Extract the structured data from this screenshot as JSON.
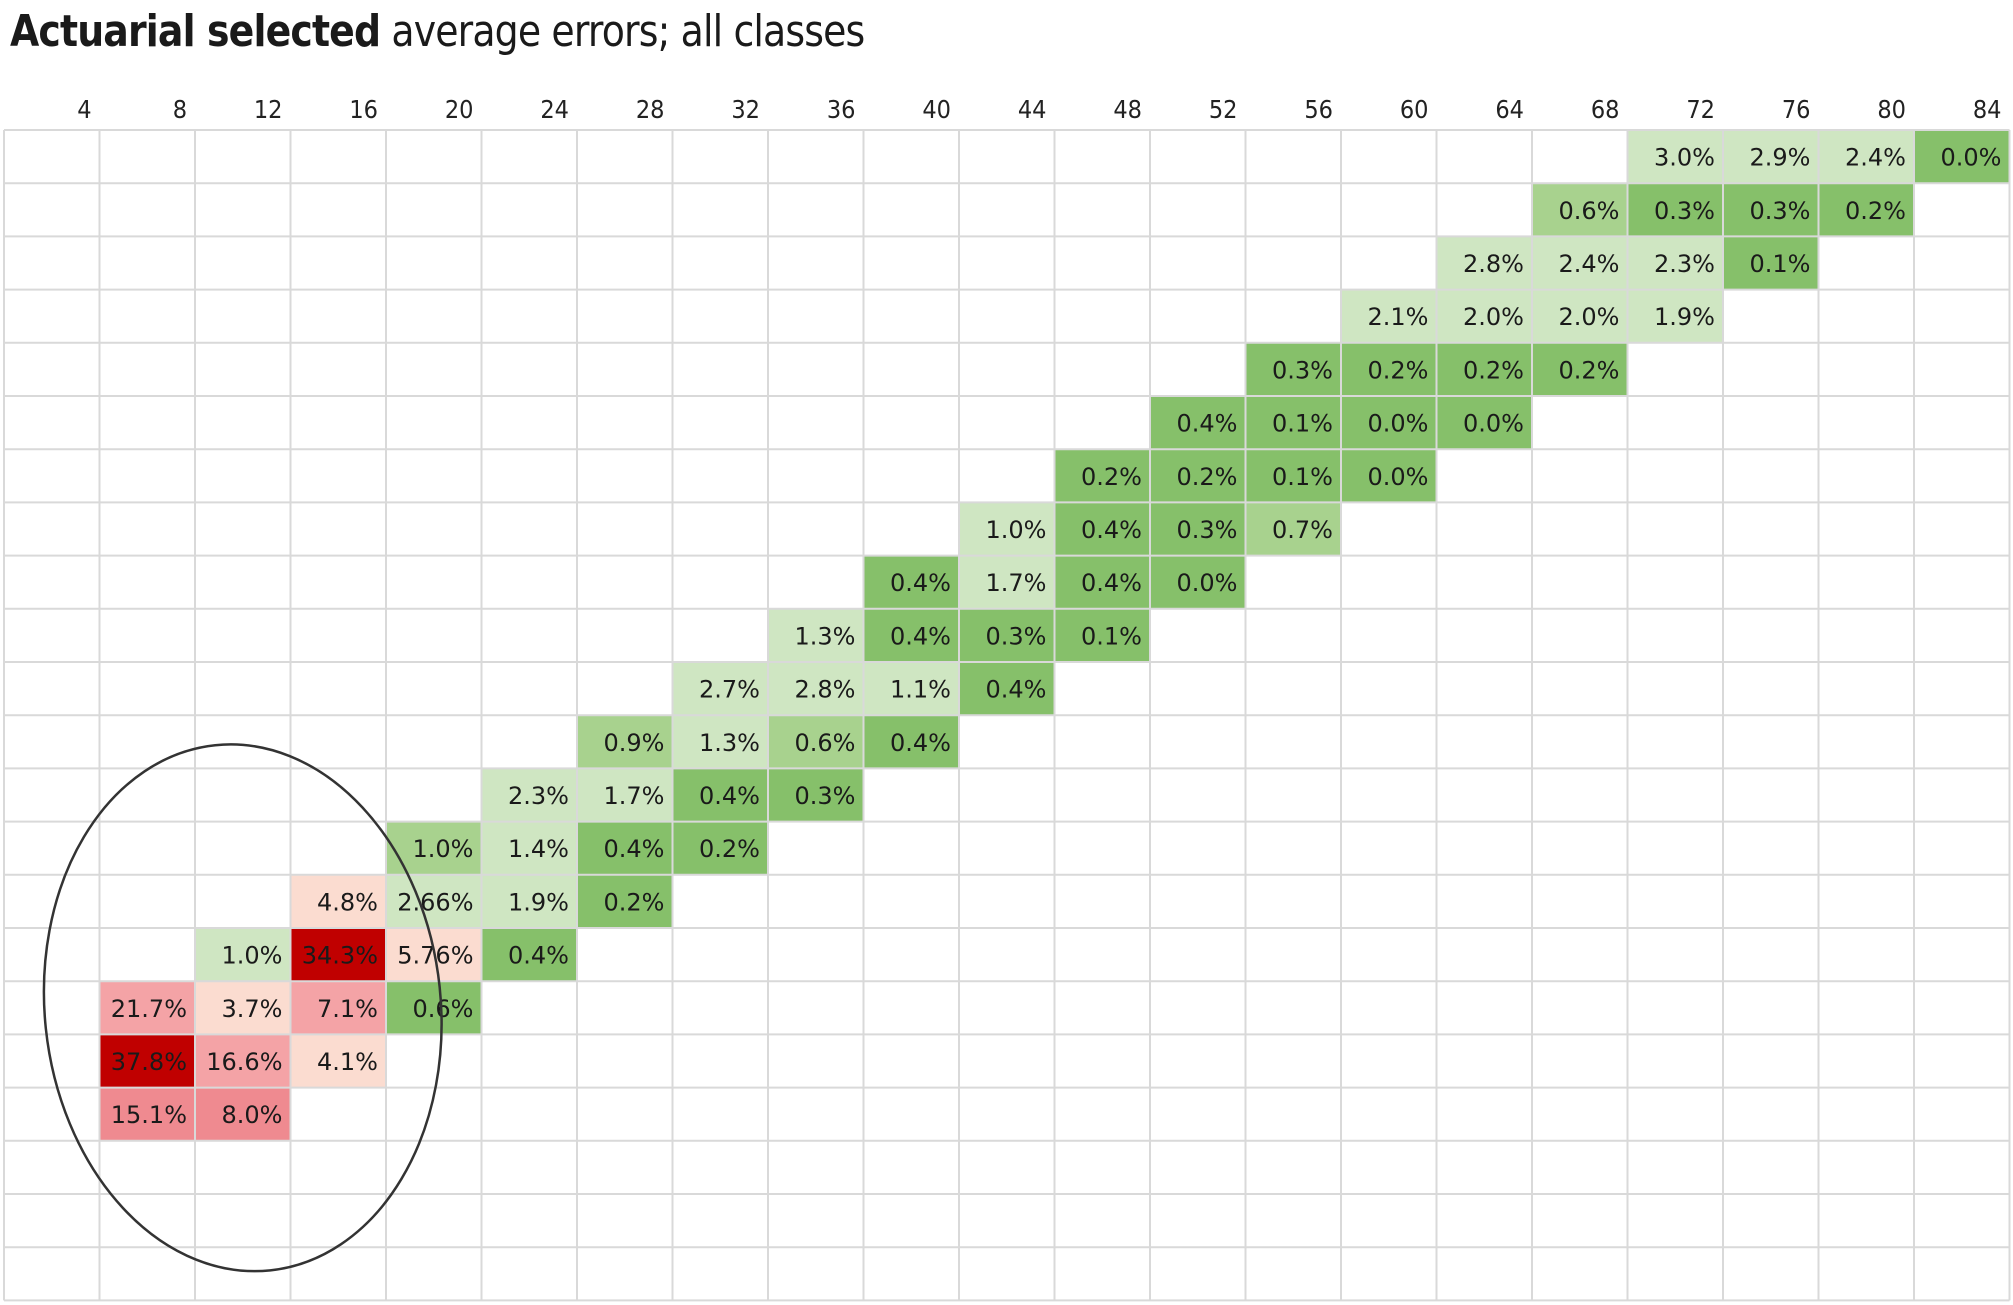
{
  "title": {
    "bold": "Actuarial selected",
    "rest": " average errors; all classes"
  },
  "chart_data": {
    "type": "heatmap",
    "title": "Actuarial selected average errors; all classes",
    "x_ticks": [
      4,
      8,
      12,
      16,
      20,
      24,
      28,
      32,
      36,
      40,
      44,
      48,
      52,
      56,
      60,
      64,
      68,
      72,
      76,
      80,
      84
    ],
    "row_count": 22,
    "grid": true,
    "colors": {
      "green_light": "#cfe6c2",
      "green_mid": "#a8d28e",
      "green_dark": "#86c06a",
      "red_light": "#fbdcd0",
      "red_mid": "#f4a3a6",
      "red_strong": "#ef8a90",
      "red_dark": "#c00000",
      "grid_line": "#d9d9d9"
    },
    "cells": [
      {
        "row": 0,
        "col": 17,
        "value": "3.0%",
        "color": "green_light"
      },
      {
        "row": 0,
        "col": 18,
        "value": "2.9%",
        "color": "green_light"
      },
      {
        "row": 0,
        "col": 19,
        "value": "2.4%",
        "color": "green_light"
      },
      {
        "row": 0,
        "col": 20,
        "value": "0.0%",
        "color": "green_dark"
      },
      {
        "row": 1,
        "col": 16,
        "value": "0.6%",
        "color": "green_mid"
      },
      {
        "row": 1,
        "col": 17,
        "value": "0.3%",
        "color": "green_dark"
      },
      {
        "row": 1,
        "col": 18,
        "value": "0.3%",
        "color": "green_dark"
      },
      {
        "row": 1,
        "col": 19,
        "value": "0.2%",
        "color": "green_dark"
      },
      {
        "row": 2,
        "col": 15,
        "value": "2.8%",
        "color": "green_light"
      },
      {
        "row": 2,
        "col": 16,
        "value": "2.4%",
        "color": "green_light"
      },
      {
        "row": 2,
        "col": 17,
        "value": "2.3%",
        "color": "green_light"
      },
      {
        "row": 2,
        "col": 18,
        "value": "0.1%",
        "color": "green_dark"
      },
      {
        "row": 3,
        "col": 14,
        "value": "2.1%",
        "color": "green_light"
      },
      {
        "row": 3,
        "col": 15,
        "value": "2.0%",
        "color": "green_light"
      },
      {
        "row": 3,
        "col": 16,
        "value": "2.0%",
        "color": "green_light"
      },
      {
        "row": 3,
        "col": 17,
        "value": "1.9%",
        "color": "green_light"
      },
      {
        "row": 4,
        "col": 13,
        "value": "0.3%",
        "color": "green_dark"
      },
      {
        "row": 4,
        "col": 14,
        "value": "0.2%",
        "color": "green_dark"
      },
      {
        "row": 4,
        "col": 15,
        "value": "0.2%",
        "color": "green_dark"
      },
      {
        "row": 4,
        "col": 16,
        "value": "0.2%",
        "color": "green_dark"
      },
      {
        "row": 5,
        "col": 12,
        "value": "0.4%",
        "color": "green_dark"
      },
      {
        "row": 5,
        "col": 13,
        "value": "0.1%",
        "color": "green_dark"
      },
      {
        "row": 5,
        "col": 14,
        "value": "0.0%",
        "color": "green_dark"
      },
      {
        "row": 5,
        "col": 15,
        "value": "0.0%",
        "color": "green_dark"
      },
      {
        "row": 6,
        "col": 11,
        "value": "0.2%",
        "color": "green_dark"
      },
      {
        "row": 6,
        "col": 12,
        "value": "0.2%",
        "color": "green_dark"
      },
      {
        "row": 6,
        "col": 13,
        "value": "0.1%",
        "color": "green_dark"
      },
      {
        "row": 6,
        "col": 14,
        "value": "0.0%",
        "color": "green_dark"
      },
      {
        "row": 7,
        "col": 10,
        "value": "1.0%",
        "color": "green_light"
      },
      {
        "row": 7,
        "col": 11,
        "value": "0.4%",
        "color": "green_dark"
      },
      {
        "row": 7,
        "col": 12,
        "value": "0.3%",
        "color": "green_dark"
      },
      {
        "row": 7,
        "col": 13,
        "value": "0.7%",
        "color": "green_mid"
      },
      {
        "row": 8,
        "col": 9,
        "value": "0.4%",
        "color": "green_dark"
      },
      {
        "row": 8,
        "col": 10,
        "value": "1.7%",
        "color": "green_light"
      },
      {
        "row": 8,
        "col": 11,
        "value": "0.4%",
        "color": "green_dark"
      },
      {
        "row": 8,
        "col": 12,
        "value": "0.0%",
        "color": "green_dark"
      },
      {
        "row": 9,
        "col": 8,
        "value": "1.3%",
        "color": "green_light"
      },
      {
        "row": 9,
        "col": 9,
        "value": "0.4%",
        "color": "green_dark"
      },
      {
        "row": 9,
        "col": 10,
        "value": "0.3%",
        "color": "green_dark"
      },
      {
        "row": 9,
        "col": 11,
        "value": "0.1%",
        "color": "green_dark"
      },
      {
        "row": 10,
        "col": 7,
        "value": "2.7%",
        "color": "green_light"
      },
      {
        "row": 10,
        "col": 8,
        "value": "2.8%",
        "color": "green_light"
      },
      {
        "row": 10,
        "col": 9,
        "value": "1.1%",
        "color": "green_light"
      },
      {
        "row": 10,
        "col": 10,
        "value": "0.4%",
        "color": "green_dark"
      },
      {
        "row": 11,
        "col": 6,
        "value": "0.9%",
        "color": "green_mid"
      },
      {
        "row": 11,
        "col": 7,
        "value": "1.3%",
        "color": "green_light"
      },
      {
        "row": 11,
        "col": 8,
        "value": "0.6%",
        "color": "green_mid"
      },
      {
        "row": 11,
        "col": 9,
        "value": "0.4%",
        "color": "green_dark"
      },
      {
        "row": 12,
        "col": 5,
        "value": "2.3%",
        "color": "green_light"
      },
      {
        "row": 12,
        "col": 6,
        "value": "1.7%",
        "color": "green_light"
      },
      {
        "row": 12,
        "col": 7,
        "value": "0.4%",
        "color": "green_dark"
      },
      {
        "row": 12,
        "col": 8,
        "value": "0.3%",
        "color": "green_dark"
      },
      {
        "row": 13,
        "col": 4,
        "value": "1.0%",
        "color": "green_mid"
      },
      {
        "row": 13,
        "col": 5,
        "value": "1.4%",
        "color": "green_light"
      },
      {
        "row": 13,
        "col": 6,
        "value": "0.4%",
        "color": "green_dark"
      },
      {
        "row": 13,
        "col": 7,
        "value": "0.2%",
        "color": "green_dark"
      },
      {
        "row": 14,
        "col": 3,
        "value": "4.8%",
        "color": "red_light"
      },
      {
        "row": 14,
        "col": 4,
        "value": "2.66%",
        "color": "green_light"
      },
      {
        "row": 14,
        "col": 5,
        "value": "1.9%",
        "color": "green_light"
      },
      {
        "row": 14,
        "col": 6,
        "value": "0.2%",
        "color": "green_dark"
      },
      {
        "row": 15,
        "col": 2,
        "value": "1.0%",
        "color": "green_light"
      },
      {
        "row": 15,
        "col": 3,
        "value": "34.3%",
        "color": "red_dark"
      },
      {
        "row": 15,
        "col": 4,
        "value": "5.76%",
        "color": "red_light"
      },
      {
        "row": 15,
        "col": 5,
        "value": "0.4%",
        "color": "green_dark"
      },
      {
        "row": 16,
        "col": 1,
        "value": "21.7%",
        "color": "red_mid"
      },
      {
        "row": 16,
        "col": 2,
        "value": "3.7%",
        "color": "red_light"
      },
      {
        "row": 16,
        "col": 3,
        "value": "7.1%",
        "color": "red_mid"
      },
      {
        "row": 16,
        "col": 4,
        "value": "0.6%",
        "color": "green_dark"
      },
      {
        "row": 17,
        "col": 1,
        "value": "37.8%",
        "color": "red_dark"
      },
      {
        "row": 17,
        "col": 2,
        "value": "16.6%",
        "color": "red_mid"
      },
      {
        "row": 17,
        "col": 3,
        "value": "4.1%",
        "color": "red_light"
      },
      {
        "row": 18,
        "col": 1,
        "value": "15.1%",
        "color": "red_strong"
      },
      {
        "row": 18,
        "col": 2,
        "value": "8.0%",
        "color": "red_strong"
      }
    ],
    "annotation": {
      "shape": "ellipse",
      "around": "bottom-left red cells",
      "color": "#333333"
    }
  }
}
